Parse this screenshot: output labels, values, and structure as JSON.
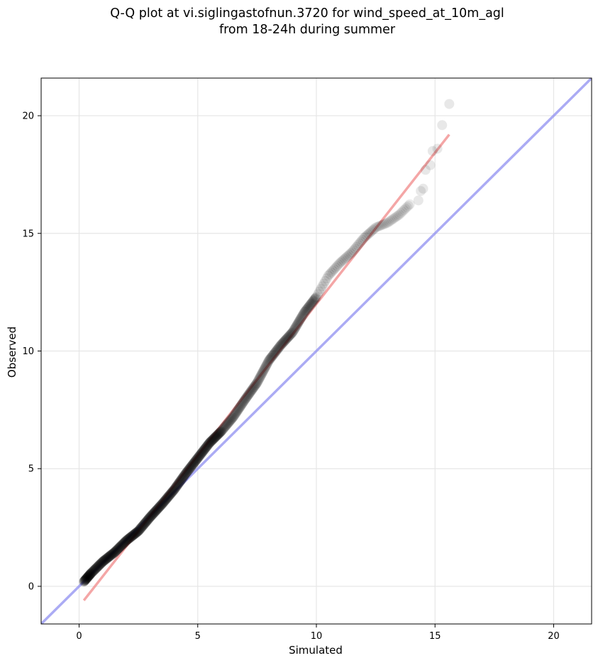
{
  "chart_data": {
    "type": "scatter",
    "title_lines": [
      "Q-Q plot at vi.siglingastofnun.3720 for wind_speed_at_10m_agl",
      "from 18-24h during summer"
    ],
    "xlabel": "Simulated",
    "ylabel": "Observed",
    "xlim": [
      -1.6,
      21.6
    ],
    "ylim": [
      -1.6,
      21.6
    ],
    "xticks": [
      0,
      5,
      10,
      15,
      20
    ],
    "yticks": [
      0,
      5,
      10,
      15,
      20
    ],
    "grid": true,
    "colors": {
      "points": "#000000",
      "fit_line": "#f08080",
      "identity_line": "#8f8ff0"
    },
    "identity_line": {
      "x": [
        -1.6,
        21.6
      ],
      "y": [
        -1.6,
        21.6
      ]
    },
    "fit_line": {
      "x": [
        0.2,
        15.6
      ],
      "y": [
        -0.6,
        19.2
      ]
    },
    "quantile_curve": [
      [
        0.2,
        0.2
      ],
      [
        0.5,
        0.55
      ],
      [
        1.0,
        1.05
      ],
      [
        1.5,
        1.45
      ],
      [
        2.0,
        1.95
      ],
      [
        2.5,
        2.35
      ],
      [
        3.0,
        2.95
      ],
      [
        3.5,
        3.5
      ],
      [
        4.0,
        4.1
      ],
      [
        4.5,
        4.8
      ],
      [
        5.0,
        5.45
      ],
      [
        5.5,
        6.1
      ],
      [
        6.0,
        6.6
      ],
      [
        6.5,
        7.2
      ],
      [
        7.0,
        7.95
      ],
      [
        7.5,
        8.65
      ],
      [
        8.0,
        9.6
      ],
      [
        8.5,
        10.25
      ],
      [
        9.0,
        10.8
      ],
      [
        9.5,
        11.65
      ],
      [
        10.0,
        12.3
      ],
      [
        10.5,
        13.2
      ],
      [
        11.0,
        13.75
      ],
      [
        11.5,
        14.2
      ],
      [
        12.0,
        14.8
      ],
      [
        12.5,
        15.25
      ],
      [
        13.0,
        15.45
      ],
      [
        13.5,
        15.8
      ],
      [
        14.0,
        16.3
      ]
    ],
    "tail_points": [
      [
        14.3,
        16.4
      ],
      [
        14.4,
        16.8
      ],
      [
        14.5,
        16.9
      ],
      [
        14.6,
        17.7
      ],
      [
        14.8,
        17.9
      ],
      [
        14.9,
        18.5
      ],
      [
        15.1,
        18.6
      ],
      [
        15.3,
        19.6
      ],
      [
        15.6,
        20.5
      ]
    ]
  }
}
